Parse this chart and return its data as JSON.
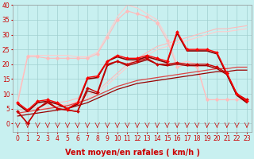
{
  "background_color": "#c8f0f0",
  "grid_color": "#a0d0d0",
  "x_label": "Vent moyen/en rafales ( km/h )",
  "x_ticks": [
    0,
    1,
    2,
    3,
    4,
    5,
    6,
    7,
    8,
    9,
    10,
    11,
    12,
    13,
    14,
    15,
    16,
    17,
    18,
    19,
    20,
    21,
    22,
    23
  ],
  "ylim": [
    -3,
    40
  ],
  "xlim": [
    -0.5,
    23.5
  ],
  "yticks": [
    0,
    5,
    10,
    15,
    20,
    25,
    30,
    35,
    40
  ],
  "line_pink_diag1_x": [
    0,
    1,
    2,
    3,
    4,
    5,
    6,
    7,
    8,
    9,
    10,
    11,
    12,
    13,
    14,
    15,
    16,
    17,
    18,
    19,
    20,
    21,
    22,
    23
  ],
  "line_pink_diag1_y": [
    4,
    5,
    5.5,
    6.5,
    7,
    7.5,
    8.5,
    9.5,
    11,
    14,
    17,
    20,
    22,
    24,
    26,
    27,
    28,
    29,
    30,
    31,
    32,
    32,
    32.5,
    33
  ],
  "line_pink_diag1_color": "#ffbbbb",
  "line_pink_diag1_lw": 0.8,
  "line_pink_diag2_x": [
    0,
    1,
    2,
    3,
    4,
    5,
    6,
    7,
    8,
    9,
    10,
    11,
    12,
    13,
    14,
    15,
    16,
    17,
    18,
    19,
    20,
    21,
    22,
    23
  ],
  "line_pink_diag2_y": [
    3,
    4,
    4.5,
    5.5,
    6,
    6.5,
    7.5,
    8.5,
    10,
    13,
    16,
    19,
    21,
    23,
    25,
    26,
    27,
    28,
    29,
    30,
    31,
    31,
    31.5,
    32
  ],
  "line_pink_diag2_color": "#ffcccc",
  "line_pink_diag2_lw": 0.8,
  "line_pink_bell1_x": [
    0,
    1,
    2,
    3,
    4,
    5,
    6,
    7,
    8,
    9,
    10,
    11,
    12,
    13,
    14,
    15,
    16,
    17,
    18,
    19,
    20,
    21,
    22,
    23
  ],
  "line_pink_bell1_y": [
    8,
    23,
    23,
    23,
    23,
    23,
    22.5,
    22.5,
    24,
    30,
    36,
    40,
    39,
    37,
    35,
    29,
    20,
    21,
    20,
    8,
    8,
    8,
    8,
    8
  ],
  "line_pink_bell1_color": "#ffcccc",
  "line_pink_bell1_lw": 0.8,
  "line_pink_bell2_x": [
    0,
    1,
    2,
    3,
    4,
    5,
    6,
    7,
    8,
    9,
    10,
    11,
    12,
    13,
    14,
    15,
    16,
    17,
    18,
    19,
    20,
    21,
    22,
    23
  ],
  "line_pink_bell2_y": [
    7,
    22.5,
    22.5,
    22,
    22,
    22,
    22,
    22,
    23.5,
    29,
    35,
    38,
    37,
    36,
    34,
    28,
    19,
    20,
    19,
    8,
    8,
    8,
    8,
    8
  ],
  "line_pink_bell2_color": "#ffbbbb",
  "line_pink_bell2_lw": 0.8,
  "line_pink_bell_marker_x": [
    0,
    1,
    2,
    3,
    4,
    5,
    6,
    7,
    8,
    9,
    10,
    11,
    12,
    13,
    14,
    15,
    16,
    17,
    18,
    19,
    20,
    21,
    22,
    23
  ],
  "line_pink_bell_marker_y": [
    7,
    22.5,
    22.5,
    22,
    22,
    22,
    22,
    22,
    23.5,
    29,
    35,
    38,
    37,
    36,
    34,
    28,
    19,
    20,
    19,
    8,
    8,
    8,
    8,
    8
  ],
  "line_pink_bell_marker_color": "#ffaaaa",
  "line_pink_bell_marker_lw": 0.8,
  "line_red_diag1_x": [
    0,
    1,
    2,
    3,
    4,
    5,
    6,
    7,
    8,
    9,
    10,
    11,
    12,
    13,
    14,
    15,
    16,
    17,
    18,
    19,
    20,
    21,
    22,
    23
  ],
  "line_red_diag1_y": [
    3.5,
    4,
    4.5,
    5,
    5.5,
    6,
    7,
    8,
    9.5,
    11,
    12.5,
    13.5,
    14.5,
    15,
    15.5,
    16,
    16.5,
    17,
    17.5,
    18,
    18.5,
    18.5,
    19,
    19
  ],
  "line_red_diag1_color": "#dd4444",
  "line_red_diag1_lw": 0.9,
  "line_red_diag2_x": [
    0,
    1,
    2,
    3,
    4,
    5,
    6,
    7,
    8,
    9,
    10,
    11,
    12,
    13,
    14,
    15,
    16,
    17,
    18,
    19,
    20,
    21,
    22,
    23
  ],
  "line_red_diag2_y": [
    2.5,
    3,
    3.5,
    4,
    4.5,
    5,
    6,
    7,
    8.5,
    10,
    11.5,
    12.5,
    13.5,
    14,
    14.5,
    15,
    15.5,
    16,
    16.5,
    17,
    17.5,
    17.5,
    18,
    18
  ],
  "line_red_diag2_color": "#990000",
  "line_red_diag2_lw": 0.9,
  "line_main1_x": [
    0,
    1,
    2,
    3,
    4,
    5,
    6,
    7,
    8,
    9,
    10,
    11,
    12,
    13,
    14,
    15,
    16,
    17,
    18,
    19,
    20,
    21,
    22,
    23
  ],
  "line_main1_y": [
    4,
    0,
    5,
    7.5,
    5,
    4.5,
    4,
    12,
    10.5,
    20,
    21,
    20,
    21,
    22,
    20,
    20,
    20.5,
    20,
    20,
    20,
    19,
    17,
    10,
    8
  ],
  "line_main1_color": "#cc0000",
  "line_main1_marker": "D",
  "line_main1_ms": 2.0,
  "line_main1_lw": 1.0,
  "line_main2_x": [
    0,
    1,
    2,
    3,
    4,
    5,
    6,
    7,
    8,
    9,
    10,
    11,
    12,
    13,
    14,
    15,
    16,
    17,
    18,
    19,
    20,
    21,
    22,
    23
  ],
  "line_main2_y": [
    7,
    4.5,
    7.5,
    8,
    7,
    5,
    7,
    15.5,
    16,
    21,
    23,
    22,
    22,
    23,
    22,
    21,
    31,
    25,
    25,
    25,
    24,
    17,
    10,
    7.5
  ],
  "line_main2_color": "#ff0000",
  "line_main2_marker": "D",
  "line_main2_ms": 2.0,
  "line_main2_lw": 1.0,
  "line_dark1_x": [
    0,
    1,
    2,
    3,
    4,
    5,
    6,
    7,
    8,
    9,
    10,
    11,
    12,
    13,
    14,
    15,
    16,
    17,
    18,
    19,
    20,
    21,
    22,
    23
  ],
  "line_dark1_y": [
    4,
    0,
    5,
    7,
    5,
    4.5,
    4,
    11,
    10,
    19.5,
    21,
    19.5,
    20.5,
    21.5,
    20,
    19.5,
    20,
    19.5,
    19.5,
    19.5,
    18.5,
    16.5,
    9.5,
    7.5
  ],
  "line_dark1_color": "#990000",
  "line_dark1_lw": 1.0,
  "line_dark2_x": [
    0,
    1,
    2,
    3,
    4,
    5,
    6,
    7,
    8,
    9,
    10,
    11,
    12,
    13,
    14,
    15,
    16,
    17,
    18,
    19,
    20,
    21,
    22,
    23
  ],
  "line_dark2_y": [
    6.5,
    4,
    7,
    7.5,
    6.5,
    5,
    6.5,
    15,
    15.5,
    21,
    22.5,
    21.5,
    21.5,
    22.5,
    21.5,
    20.5,
    30.5,
    24.5,
    24.5,
    24.5,
    23.5,
    16.5,
    9.5,
    7
  ],
  "line_dark2_color": "#880000",
  "line_dark2_lw": 1.2,
  "label_fontsize": 7,
  "tick_fontsize": 5.5,
  "label_color": "#cc0000",
  "tick_label_color": "#cc0000",
  "tick_color": "#cc0000"
}
